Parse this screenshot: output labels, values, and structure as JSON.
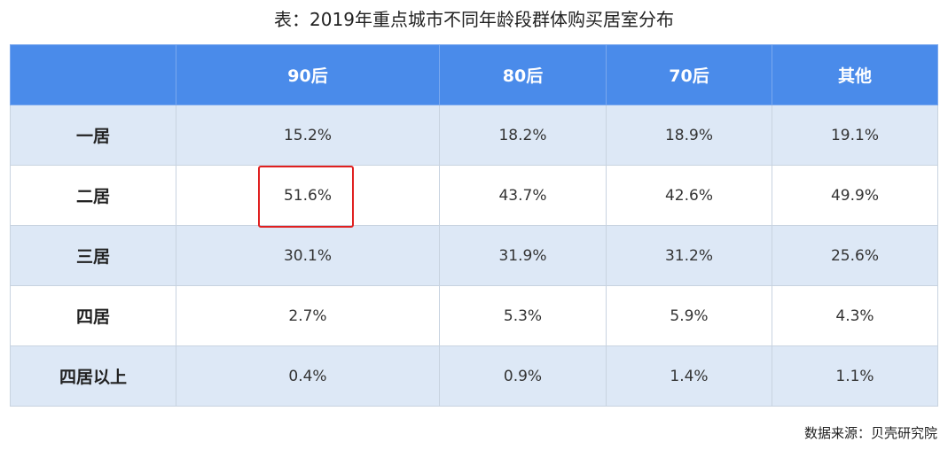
{
  "title": "表：2019年重点城市不同年龄段群体购买居室分布",
  "table": {
    "columns": [
      "90后",
      "80后",
      "70后",
      "其他"
    ],
    "rows": [
      {
        "label": "一居",
        "cells": [
          "15.2%",
          "18.2%",
          "18.9%",
          "19.1%"
        ]
      },
      {
        "label": "二居",
        "cells": [
          "51.6%",
          "43.7%",
          "42.6%",
          "49.9%"
        ]
      },
      {
        "label": "三居",
        "cells": [
          "30.1%",
          "31.9%",
          "31.2%",
          "25.6%"
        ]
      },
      {
        "label": "四居",
        "cells": [
          "2.7%",
          "5.3%",
          "5.9%",
          "4.3%"
        ]
      },
      {
        "label": "四居以上",
        "cells": [
          "0.4%",
          "0.9%",
          "1.4%",
          "1.1%"
        ]
      }
    ]
  },
  "source": "数据来源：贝壳研究院"
}
